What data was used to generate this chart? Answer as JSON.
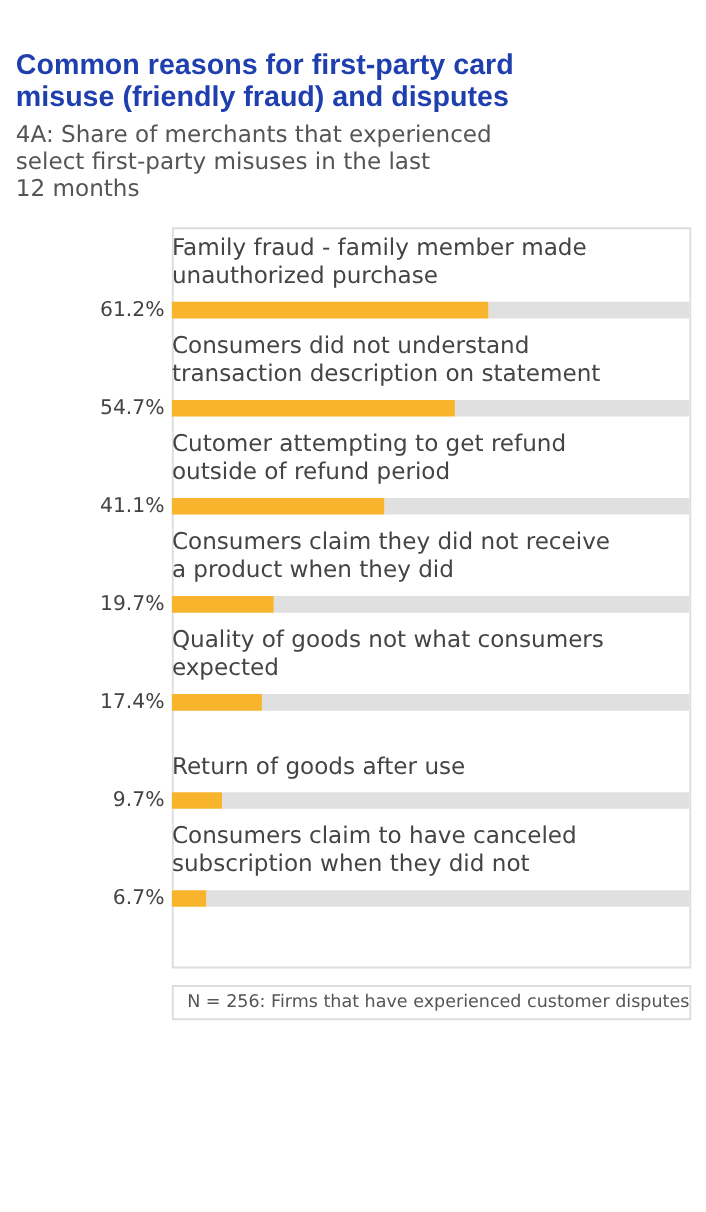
{
  "chart_data": {
    "type": "bar",
    "orientation": "horizontal",
    "stacked": true,
    "title": "Common reasons for first-party card misuse (friendly fraud) and disputes",
    "subtitle": "4A: Share of merchants that experienced select first-party misuses in the last 12 months",
    "categories": [
      "Family fraud - family member made unauthorized purchase",
      "Consumers did not understand transaction description on statement",
      "Cutomer attempting to get refund outside of refund period",
      "Consumers claim they did not receive a product when they did",
      "Quality of goods not what consumers expected",
      "Return of goods after use",
      "Consumers claim to have canceled subscription when they did not"
    ],
    "series": [
      {
        "color": "#f7b42c",
        "values": [
          61.2,
          54.7,
          41.1,
          19.7,
          17.4,
          9.7,
          6.7
        ],
        "value_labels": [
          "61.2%",
          "54.7%",
          "41.1%",
          "19.7%",
          "17.4%",
          "9.7%",
          "6.7%"
        ]
      },
      {
        "color": "#e0e0e0",
        "values": [
          38.8,
          45.3,
          58.9,
          80.3,
          82.6,
          90.3,
          93.3
        ]
      }
    ],
    "xlim": [
      0,
      100
    ],
    "tick_labels": false,
    "annotations": [
      "N = 256: Firms that have experienced customer disputes"
    ]
  }
}
